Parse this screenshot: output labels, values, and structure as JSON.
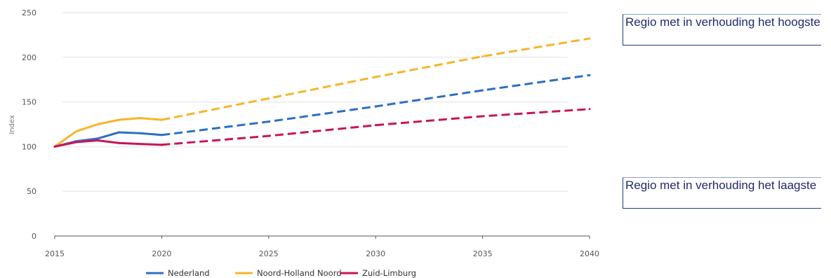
{
  "annotations": {
    "high": "Regio met in verhouding het hoogste",
    "low": "Regio met in verhouding het laagste"
  },
  "colors": {
    "Nederland": "#2d6fc2",
    "Noord-Holland Noord": "#f6b52a",
    "Zuid-Limburg": "#c8145a"
  },
  "chart_data": {
    "type": "line",
    "ylabel": "Index",
    "xlim": [
      2015,
      2040
    ],
    "ylim": [
      0,
      250
    ],
    "xticks": [
      2015,
      2020,
      2025,
      2030,
      2035,
      2040
    ],
    "yticks": [
      0,
      50,
      100,
      150,
      200,
      250
    ],
    "grid": true,
    "legend_position": "bottom",
    "series": [
      {
        "name": "Nederland",
        "historical": {
          "x": [
            2015,
            2016,
            2017,
            2018,
            2019,
            2020
          ],
          "y": [
            100,
            106,
            109,
            116,
            115,
            113
          ]
        },
        "projection": {
          "x": [
            2020,
            2025,
            2030,
            2035,
            2040
          ],
          "y": [
            113,
            128,
            145,
            163,
            180
          ]
        }
      },
      {
        "name": "Noord-Holland Noord",
        "historical": {
          "x": [
            2015,
            2016,
            2017,
            2018,
            2019,
            2020
          ],
          "y": [
            100,
            117,
            125,
            130,
            132,
            130
          ]
        },
        "projection": {
          "x": [
            2020,
            2025,
            2030,
            2035,
            2040
          ],
          "y": [
            130,
            154,
            178,
            201,
            221
          ]
        }
      },
      {
        "name": "Zuid-Limburg",
        "historical": {
          "x": [
            2015,
            2016,
            2017,
            2018,
            2019,
            2020
          ],
          "y": [
            100,
            105,
            107,
            104,
            103,
            102
          ]
        },
        "projection": {
          "x": [
            2020,
            2025,
            2030,
            2035,
            2040
          ],
          "y": [
            102,
            112,
            124,
            134,
            142
          ]
        }
      }
    ]
  }
}
